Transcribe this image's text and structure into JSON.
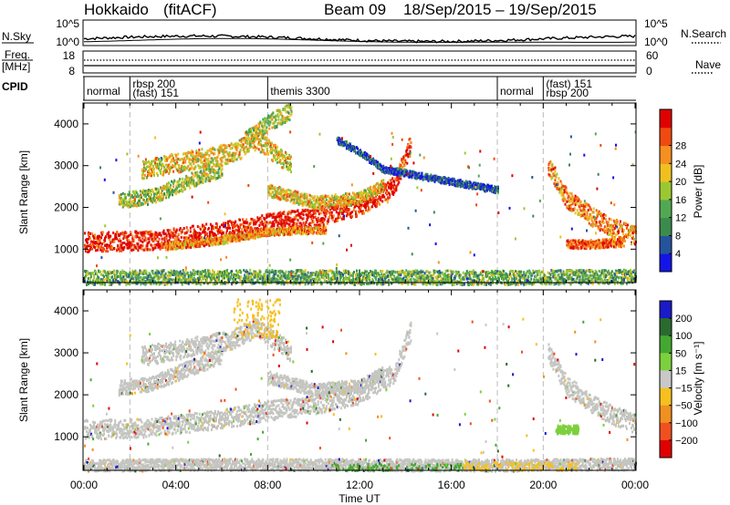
{
  "header": {
    "station": "Hokkaido",
    "mode": "(fitACF)",
    "beam": "Beam 09",
    "dates": "18/Sep/2015 – 19/Sep/2015"
  },
  "panels": {
    "nsky": {
      "label": "N.Sky",
      "right_label": "N.Search",
      "ticks": [
        "10^5",
        "10^0"
      ]
    },
    "freq": {
      "label": "Freq.",
      "unit": "[MHz]",
      "left_ticks": [
        "18",
        "8"
      ],
      "right_ticks": [
        "60",
        "0"
      ],
      "right_label": "Nave"
    },
    "cpid": {
      "label": "CPID"
    }
  },
  "cpid_segments": [
    {
      "label": "normal",
      "start_h": 0.0
    },
    {
      "label": "rbsp 200",
      "label2": "(fast) 151",
      "start_h": 2.0
    },
    {
      "label": "themis 3300",
      "start_h": 8.0
    },
    {
      "label": "normal",
      "start_h": 18.0
    },
    {
      "label": "(fast) 151",
      "label2": "rbsp 200",
      "start_h": 20.0
    }
  ],
  "chart_data": [
    {
      "type": "heatmap",
      "name": "power",
      "ylabel": "Slant Range [km]",
      "yticks": [
        1000,
        2000,
        3000,
        4000
      ],
      "ylim": [
        200,
        4500
      ],
      "xlim_hours": [
        0,
        24
      ],
      "colorbar": {
        "label": "Power [dB]",
        "ticks": [
          "4",
          "8",
          "12",
          "16",
          "20",
          "24",
          "28"
        ],
        "colors": [
          "#1414e6",
          "#24549c",
          "#3d8a4e",
          "#52a852",
          "#9bc832",
          "#f0c020",
          "#f59020",
          "#f04a10",
          "#e00000"
        ]
      },
      "bands": [
        {
          "t": [
            0,
            3,
            6,
            8,
            10,
            12,
            13.5,
            14.2
          ],
          "r": [
            1150,
            1200,
            1400,
            1600,
            1750,
            2000,
            2500,
            3500
          ],
          "w": 230,
          "level": 8
        },
        {
          "t": [
            3.5,
            6,
            8,
            10.5
          ],
          "r": [
            1050,
            1200,
            1400,
            1450
          ],
          "w": 90,
          "level": 6
        },
        {
          "t": [
            1.5,
            3,
            4.5,
            6
          ],
          "r": [
            2150,
            2250,
            2600,
            2900
          ],
          "w": 180,
          "level": 4
        },
        {
          "t": [
            2.5,
            4.5,
            6.5,
            7.5,
            9
          ],
          "r": [
            2900,
            3100,
            3300,
            3600,
            3000
          ],
          "w": 230,
          "level": 5
        },
        {
          "t": [
            7,
            8,
            9
          ],
          "r": [
            3600,
            4000,
            4300
          ],
          "w": 200,
          "level": 4
        },
        {
          "t": [
            8,
            10,
            12,
            13
          ],
          "r": [
            2400,
            2100,
            2200,
            2500
          ],
          "w": 150,
          "level": 5
        },
        {
          "t": [
            11,
            12,
            13,
            15,
            17,
            18
          ],
          "r": [
            3600,
            3300,
            2900,
            2700,
            2500,
            2400
          ],
          "w": 80,
          "level": 1
        },
        {
          "t": [
            20.2,
            21,
            22,
            23,
            24
          ],
          "r": [
            3000,
            2200,
            1800,
            1500,
            1300
          ],
          "w": 230,
          "level": 6
        },
        {
          "t": [
            21,
            22,
            23.5
          ],
          "r": [
            1100,
            1100,
            1150
          ],
          "w": 100,
          "level": 7
        },
        {
          "t": [
            0,
            6,
            12,
            18,
            24
          ],
          "r": [
            300,
            320,
            310,
            300,
            330
          ],
          "w": 170,
          "level": 3
        }
      ]
    },
    {
      "type": "heatmap",
      "name": "velocity",
      "ylabel": "Slant Range [km]",
      "xlabel": "Time UT",
      "yticks": [
        1000,
        2000,
        3000,
        4000
      ],
      "ylim": [
        200,
        4500
      ],
      "xticks": [
        "00:00",
        "04:00",
        "08:00",
        "12:00",
        "16:00",
        "20:00",
        "00:00"
      ],
      "xlim_hours": [
        0,
        24
      ],
      "colorbar": {
        "label": "Velocity [m s⁻¹]",
        "ticks": [
          "200",
          "100",
          "50",
          "15",
          "−15",
          "−50",
          "−100",
          "−200"
        ],
        "colors": [
          "#1a1ac8",
          "#2a6a30",
          "#44a830",
          "#7cd03c",
          "#c8c8c8",
          "#f5c020",
          "#f09020",
          "#f05020",
          "#e00000"
        ]
      },
      "ground_color": "#c4c4c0",
      "bands": [
        {
          "t": [
            0,
            3,
            6,
            8,
            10,
            12,
            13.5,
            14.2
          ],
          "r": [
            1150,
            1200,
            1400,
            1600,
            1750,
            2000,
            2500,
            3500
          ],
          "w": 230
        },
        {
          "t": [
            1.5,
            3,
            4.5,
            6
          ],
          "r": [
            2150,
            2250,
            2600,
            2900
          ],
          "w": 180
        },
        {
          "t": [
            2.5,
            4.5,
            6.5,
            7.5,
            9
          ],
          "r": [
            2900,
            3100,
            3300,
            3600,
            3000
          ],
          "w": 230
        },
        {
          "t": [
            8,
            10,
            12,
            13
          ],
          "r": [
            2400,
            2100,
            2200,
            2500
          ],
          "w": 150
        },
        {
          "t": [
            20.2,
            21,
            22,
            23,
            24
          ],
          "r": [
            3000,
            2200,
            1800,
            1500,
            1300
          ],
          "w": 230
        },
        {
          "t": [
            0,
            6,
            12,
            18,
            24
          ],
          "r": [
            300,
            320,
            310,
            300,
            330
          ],
          "w": 140
        }
      ],
      "accents": [
        {
          "t0": 6.5,
          "t1": 8.5,
          "r0": 3400,
          "r1": 4300,
          "color_index": 5
        },
        {
          "t0": 10.5,
          "t1": 16.5,
          "r0": 220,
          "r1": 380,
          "color_index": 2
        },
        {
          "t0": 16.5,
          "t1": 21.5,
          "r0": 220,
          "r1": 420,
          "color_index": 5
        },
        {
          "t0": 20.5,
          "t1": 21.5,
          "r0": 1100,
          "r1": 1300,
          "color_index": 3
        }
      ]
    }
  ]
}
